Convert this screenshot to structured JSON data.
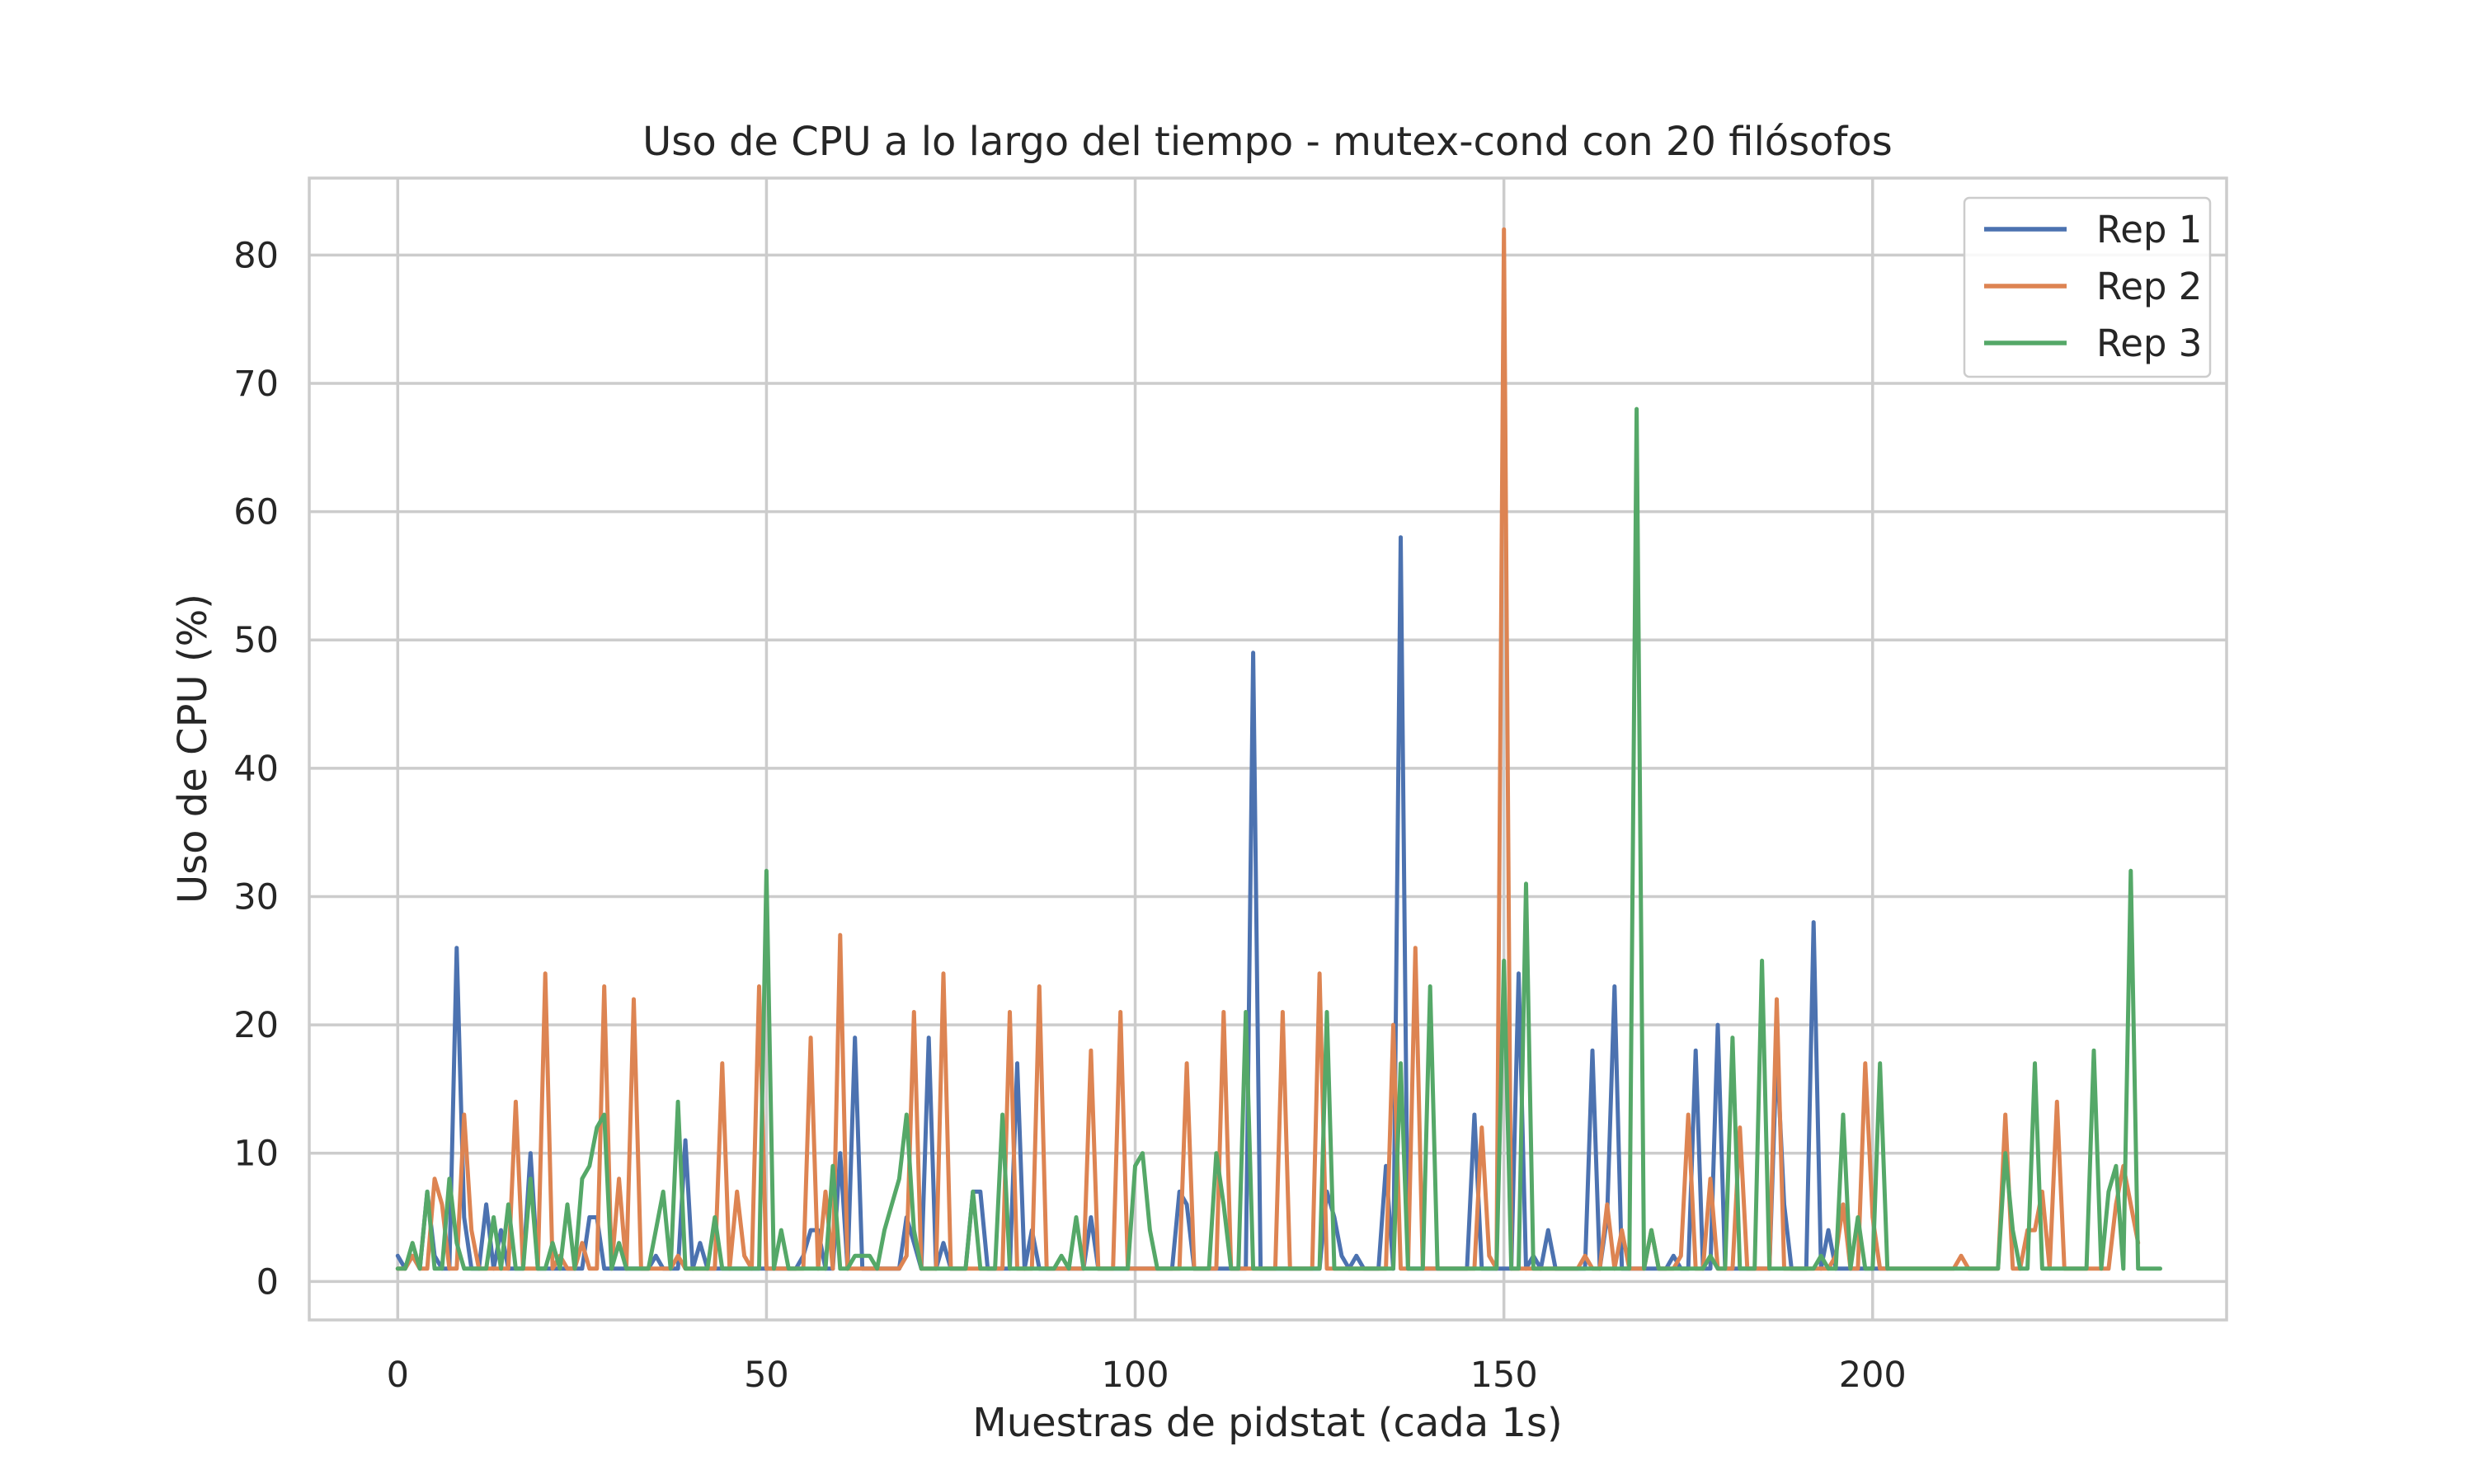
{
  "chart_data": {
    "type": "line",
    "title": "Uso de CPU a lo largo del tiempo - mutex-cond con 20 filósofos",
    "xlabel": "Muestras de pidstat (cada 1s)",
    "ylabel": "Uso de CPU (%)",
    "xlim": [
      -12,
      248
    ],
    "ylim": [
      -3,
      86
    ],
    "xticks": [
      0,
      50,
      100,
      150,
      200
    ],
    "yticks": [
      0,
      10,
      20,
      30,
      40,
      50,
      60,
      70,
      80
    ],
    "grid": true,
    "legend_position": "top-right",
    "series": [
      {
        "name": "Rep 1",
        "color": "#4c72b0",
        "values": [
          2,
          1,
          2,
          1,
          7,
          2,
          1,
          1,
          26,
          5,
          1,
          1,
          6,
          1,
          4,
          1,
          1,
          1,
          10,
          1,
          1,
          1,
          1,
          1,
          1,
          1,
          5,
          5,
          1,
          1,
          1,
          1,
          1,
          1,
          1,
          2,
          1,
          1,
          1,
          11,
          1,
          3,
          1,
          1,
          1,
          1,
          1,
          1,
          1,
          1,
          1,
          1,
          1,
          1,
          1,
          2,
          4,
          4,
          1,
          1,
          10,
          1,
          19,
          1,
          1,
          1,
          1,
          1,
          1,
          5,
          3,
          1,
          19,
          1,
          3,
          1,
          1,
          1,
          7,
          7,
          1,
          1,
          1,
          1,
          17,
          1,
          4,
          1,
          1,
          1,
          1,
          1,
          1,
          1,
          5,
          1,
          1,
          1,
          1,
          1,
          1,
          1,
          1,
          1,
          1,
          1,
          7,
          6,
          1,
          1,
          1,
          1,
          1,
          1,
          1,
          1,
          49,
          1,
          1,
          1,
          1,
          1,
          1,
          1,
          1,
          1,
          7,
          5,
          2,
          1,
          2,
          1,
          1,
          1,
          9,
          1,
          58,
          1,
          1,
          1,
          1,
          1,
          1,
          1,
          1,
          1,
          13,
          1,
          1,
          1,
          1,
          1,
          24,
          1,
          2,
          1,
          4,
          1,
          1,
          1,
          1,
          1,
          18,
          1,
          5,
          23,
          1,
          1,
          1,
          1,
          1,
          1,
          1,
          2,
          1,
          1,
          18,
          1,
          1,
          20,
          1,
          1,
          1,
          1,
          1,
          1,
          1,
          18,
          6,
          1,
          1,
          1,
          28,
          1,
          4,
          1,
          1,
          1,
          1,
          1,
          1,
          1,
          1
        ]
      },
      {
        "name": "Rep 2",
        "color": "#dd8452",
        "values": [
          1,
          1,
          2,
          1,
          1,
          8,
          6,
          1,
          1,
          13,
          4,
          1,
          1,
          1,
          1,
          1,
          14,
          1,
          1,
          1,
          24,
          1,
          2,
          1,
          1,
          3,
          1,
          1,
          23,
          1,
          8,
          1,
          22,
          1,
          1,
          1,
          1,
          1,
          2,
          1,
          1,
          1,
          1,
          1,
          17,
          1,
          7,
          2,
          1,
          23,
          1,
          1,
          1,
          1,
          1,
          1,
          19,
          1,
          7,
          1,
          27,
          1,
          1,
          1,
          1,
          1,
          1,
          1,
          1,
          2,
          21,
          1,
          1,
          1,
          24,
          1,
          1,
          1,
          1,
          1,
          1,
          1,
          1,
          21,
          1,
          1,
          1,
          23,
          1,
          1,
          1,
          1,
          1,
          1,
          18,
          1,
          1,
          1,
          21,
          1,
          1,
          1,
          1,
          1,
          1,
          1,
          1,
          17,
          1,
          1,
          1,
          1,
          21,
          1,
          1,
          1,
          1,
          1,
          1,
          1,
          21,
          1,
          1,
          1,
          1,
          24,
          1,
          1,
          1,
          1,
          1,
          1,
          1,
          1,
          1,
          20,
          1,
          1,
          26,
          1,
          1,
          1,
          1,
          1,
          1,
          1,
          1,
          12,
          2,
          1,
          82,
          1,
          1,
          1,
          1,
          1,
          1,
          1,
          1,
          1,
          1,
          2,
          1,
          1,
          6,
          1,
          4,
          1,
          1,
          1,
          4,
          1,
          1,
          1,
          2,
          13,
          1,
          1,
          8,
          1,
          1,
          1,
          12,
          1,
          1,
          1,
          1,
          22,
          1,
          1,
          1,
          1,
          1,
          1,
          1,
          2,
          6,
          1,
          1,
          17,
          5,
          1,
          1,
          1,
          1,
          1,
          1,
          1,
          1,
          1,
          1,
          1,
          2,
          1,
          1,
          1,
          1,
          1,
          13,
          1,
          1,
          4,
          4,
          7,
          1,
          14,
          1,
          1,
          1,
          1,
          1,
          1,
          1,
          6,
          9,
          6,
          3
        ]
      },
      {
        "name": "Rep 3",
        "color": "#55a868",
        "values": [
          1,
          1,
          3,
          1,
          7,
          1,
          1,
          8,
          3,
          1,
          1,
          1,
          1,
          5,
          1,
          6,
          1,
          1,
          8,
          1,
          1,
          3,
          1,
          6,
          1,
          8,
          9,
          12,
          13,
          1,
          3,
          1,
          1,
          1,
          1,
          4,
          7,
          1,
          14,
          1,
          1,
          1,
          1,
          5,
          1,
          1,
          1,
          1,
          1,
          1,
          32,
          1,
          4,
          1,
          1,
          1,
          1,
          1,
          1,
          9,
          1,
          1,
          2,
          2,
          2,
          1,
          4,
          6,
          8,
          13,
          4,
          1,
          1,
          1,
          1,
          1,
          1,
          1,
          7,
          1,
          1,
          1,
          13,
          1,
          1,
          1,
          1,
          1,
          1,
          1,
          2,
          1,
          5,
          1,
          1,
          1,
          1,
          1,
          1,
          1,
          9,
          10,
          4,
          1,
          1,
          1,
          1,
          1,
          1,
          1,
          1,
          10,
          6,
          1,
          1,
          21,
          1,
          1,
          1,
          1,
          1,
          1,
          1,
          1,
          1,
          1,
          21,
          1,
          1,
          1,
          1,
          1,
          1,
          1,
          1,
          1,
          17,
          1,
          1,
          1,
          23,
          1,
          1,
          1,
          1,
          1,
          1,
          1,
          1,
          1,
          25,
          1,
          1,
          31,
          1,
          1,
          1,
          1,
          1,
          1,
          1,
          1,
          1,
          1,
          1,
          1,
          1,
          1,
          68,
          1,
          4,
          1,
          1,
          1,
          1,
          1,
          1,
          1,
          2,
          1,
          1,
          19,
          1,
          1,
          1,
          25,
          1,
          1,
          1,
          1,
          1,
          1,
          1,
          2,
          1,
          1,
          13,
          1,
          5,
          1,
          1,
          17,
          1,
          1,
          1,
          1,
          1,
          1,
          1,
          1,
          1,
          1,
          1,
          1,
          1,
          1,
          1,
          1,
          10,
          4,
          1,
          1,
          17,
          1,
          1,
          1,
          1,
          1,
          1,
          1,
          18,
          1,
          7,
          9,
          1,
          32,
          1,
          1,
          1,
          1
        ]
      }
    ]
  }
}
